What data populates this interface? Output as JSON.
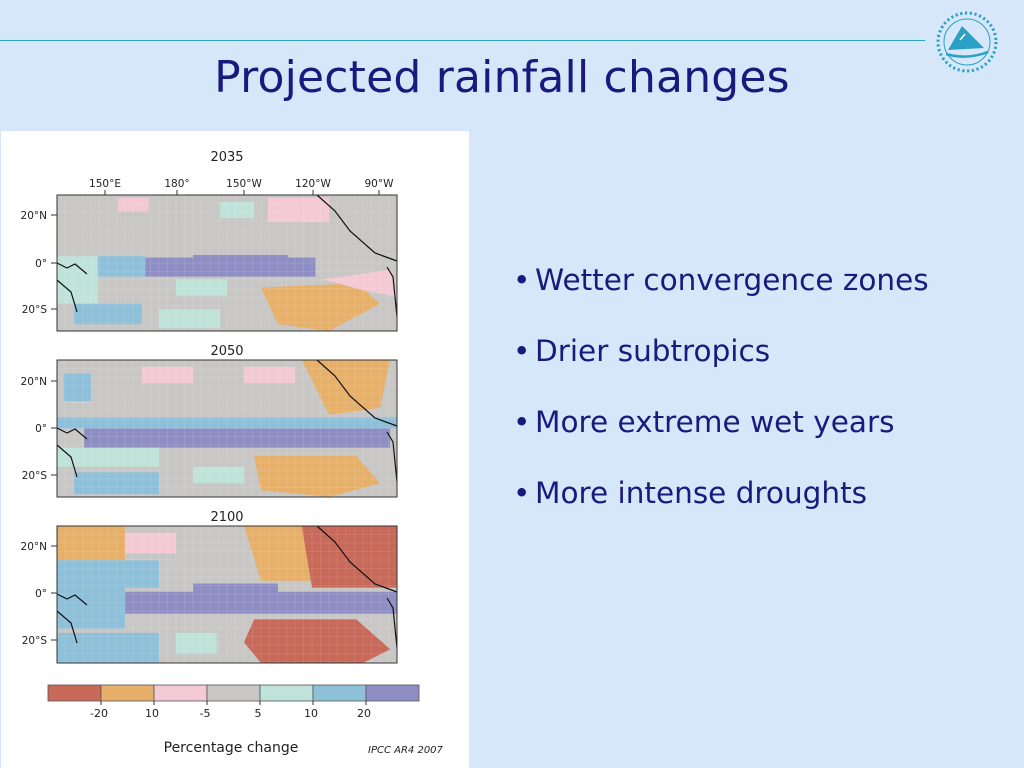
{
  "slide": {
    "title": "Projected rainfall changes",
    "bullets": [
      "Wetter convergence zones",
      "Drier subtropics",
      "More extreme wet years",
      "More intense droughts"
    ],
    "credit": "IPCC AR4 2007",
    "logo_icon": "pacific-organisation-logo-icon",
    "colors": {
      "background": "#d6e7f9",
      "title": "#1a1a7e",
      "rule": "#2aa0c4"
    }
  },
  "figure": {
    "lon_labels": [
      "150°E",
      "180°",
      "150°W",
      "120°W",
      "90°W"
    ],
    "lat_labels": [
      "20°N",
      "0°",
      "20°S"
    ],
    "panels": [
      {
        "year": "2035"
      },
      {
        "year": "2050"
      },
      {
        "year": "2100"
      }
    ],
    "legend": {
      "title": "Percentage change",
      "tick_labels": [
        "-20",
        "10",
        "-5",
        "5",
        "10",
        "20"
      ],
      "colors": [
        "#c8695a",
        "#e7b06a",
        "#f3c9d4",
        "#c8c7c6",
        "#bfe3d9",
        "#8fc0d9",
        "#8e8ec5"
      ]
    }
  }
}
